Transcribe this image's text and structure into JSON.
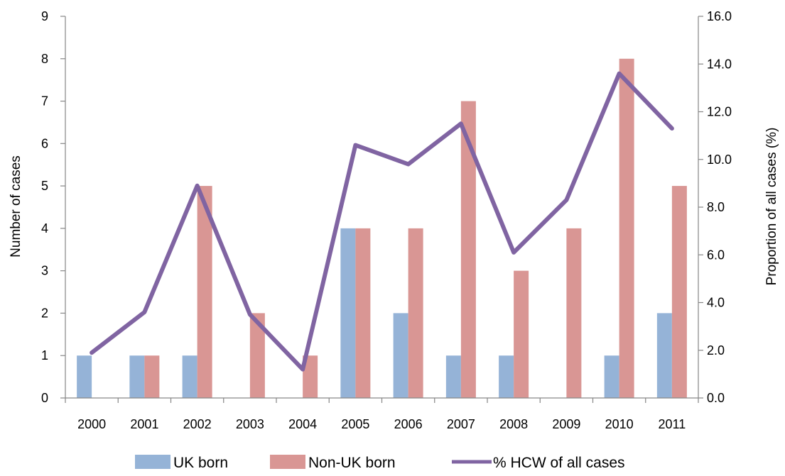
{
  "chart_data": {
    "type": "bar",
    "categories": [
      "2000",
      "2001",
      "2002",
      "2003",
      "2004",
      "2005",
      "2006",
      "2007",
      "2008",
      "2009",
      "2010",
      "2011"
    ],
    "series": [
      {
        "name": "UK born",
        "type": "bar",
        "axis": "left",
        "color": "#95b3d7",
        "values": [
          1,
          1,
          1,
          0,
          0,
          4,
          2,
          1,
          1,
          0,
          1,
          2
        ]
      },
      {
        "name": "Non-UK born",
        "type": "bar",
        "axis": "left",
        "color": "#d99694",
        "values": [
          0,
          1,
          5,
          2,
          1,
          4,
          4,
          7,
          3,
          4,
          8,
          5
        ]
      },
      {
        "name": "% HCW of all cases",
        "type": "line",
        "axis": "right",
        "color": "#8064a2",
        "values": [
          1.9,
          3.6,
          8.9,
          3.5,
          1.2,
          10.6,
          9.8,
          11.5,
          6.1,
          8.3,
          13.6,
          11.3
        ]
      }
    ],
    "ylabel": "Number of cases",
    "y2label": "Proportion of all cases (%)",
    "ylim": [
      0,
      9
    ],
    "y2lim": [
      0,
      16
    ],
    "yticks": [
      "0",
      "1",
      "2",
      "3",
      "4",
      "5",
      "6",
      "7",
      "8",
      "9"
    ],
    "y2ticks": [
      "0.0",
      "2.0",
      "4.0",
      "6.0",
      "8.0",
      "10.0",
      "12.0",
      "14.0",
      "16.0"
    ],
    "grid": false,
    "legend_position": "bottom"
  }
}
